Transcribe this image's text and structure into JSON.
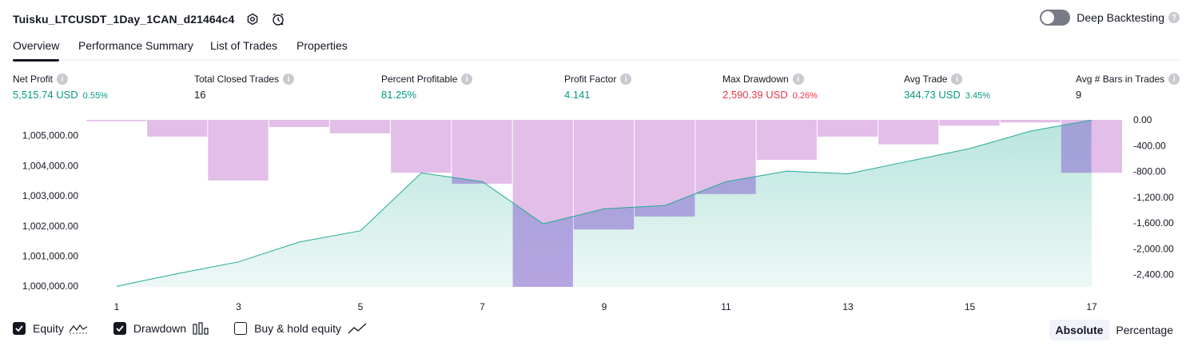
{
  "header": {
    "title": "Tuisku_LTCUSDT_1Day_1CAN_d21464c4",
    "deep_backtesting_label": "Deep Backtesting"
  },
  "tabs": [
    {
      "label": "Overview",
      "active": true
    },
    {
      "label": "Performance Summary",
      "active": false
    },
    {
      "label": "List of Trades",
      "active": false
    },
    {
      "label": "Properties",
      "active": false
    }
  ],
  "metrics": [
    {
      "label": "Net Profit",
      "value": "5,515.74 USD",
      "pct": "0.55%",
      "tone": "green"
    },
    {
      "label": "Total Closed Trades",
      "value": "16",
      "pct": "",
      "tone": "neutral"
    },
    {
      "label": "Percent Profitable",
      "value": "81.25%",
      "pct": "",
      "tone": "green"
    },
    {
      "label": "Profit Factor",
      "value": "4.141",
      "pct": "",
      "tone": "green"
    },
    {
      "label": "Max Drawdown",
      "value": "2,590.39 USD",
      "pct": "0.26%",
      "tone": "red"
    },
    {
      "label": "Avg Trade",
      "value": "344.73 USD",
      "pct": "3.45%",
      "tone": "green"
    },
    {
      "label": "Avg # Bars in Trades",
      "value": "9",
      "pct": "",
      "tone": "neutral"
    }
  ],
  "chart_data": {
    "type": "area",
    "x": [
      1,
      2,
      3,
      4,
      5,
      6,
      7,
      8,
      9,
      10,
      11,
      12,
      13,
      14,
      15,
      16,
      17
    ],
    "x_tick_labels": [
      "1",
      "3",
      "5",
      "7",
      "9",
      "11",
      "13",
      "15",
      "17"
    ],
    "left_axis": {
      "ticks": [
        "1,000,000.00",
        "1,001,000.00",
        "1,002,000.00",
        "1,003,000.00",
        "1,004,000.00",
        "1,005,000.00"
      ],
      "range": [
        999980,
        1005520
      ]
    },
    "right_axis": {
      "ticks": [
        "0.00",
        "-400.00",
        "-800.00",
        "-1,200.00",
        "-1,600.00",
        "-2,000.00",
        "-2,400.00"
      ],
      "range": [
        -2590,
        0
      ]
    },
    "series": [
      {
        "name": "Equity",
        "values": [
          1000000,
          1000420,
          1000810,
          1001470,
          1001840,
          1003760,
          1003470,
          1002070,
          1002570,
          1002680,
          1003470,
          1003820,
          1003730,
          1004150,
          1004570,
          1005150,
          1005515
        ]
      },
      {
        "name": "Drawdown",
        "values": [
          -20,
          -260,
          -940,
          -110,
          -210,
          -820,
          -990,
          -2590,
          -1700,
          -1500,
          -1150,
          -620,
          -260,
          -380,
          -90,
          -40,
          -820
        ]
      }
    ],
    "colors": {
      "equity_line": "#22ab94",
      "equity_fill": "#22ab94",
      "drawdown": "#ce93d8",
      "drawdown_overlap": "#9c8fe0"
    }
  },
  "legend": [
    {
      "label": "Equity",
      "checked": true,
      "icon": "equity-line-icon"
    },
    {
      "label": "Drawdown",
      "checked": true,
      "icon": "drawdown-bars-icon"
    },
    {
      "label": "Buy & hold equity",
      "checked": false,
      "icon": "buy-hold-line-icon"
    }
  ],
  "view_modes": [
    {
      "label": "Absolute",
      "active": true
    },
    {
      "label": "Percentage",
      "active": false
    }
  ]
}
